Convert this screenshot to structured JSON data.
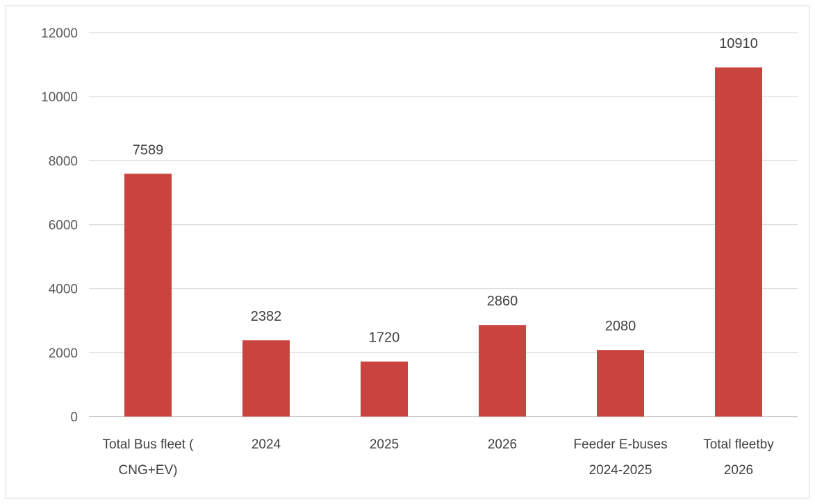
{
  "chart_data": {
    "type": "bar",
    "title": "",
    "xlabel": "",
    "ylabel": "",
    "categories": [
      [
        "Total Bus fleet (",
        "CNG+EV)"
      ],
      [
        "2024"
      ],
      [
        "2025"
      ],
      [
        "2026"
      ],
      [
        "Feeder E-buses",
        "2024-2025"
      ],
      [
        "Total fleetby",
        "2026"
      ]
    ],
    "values": [
      7589,
      2382,
      1720,
      2860,
      2080,
      10910
    ],
    "data_labels": [
      "7589",
      "2382",
      "1720",
      "2860",
      "2080",
      "10910"
    ],
    "ylim": [
      0,
      12000
    ],
    "yticks": [
      0,
      2000,
      4000,
      6000,
      8000,
      10000,
      12000
    ],
    "ytick_labels": [
      "0",
      "2000",
      "4000",
      "6000",
      "8000",
      "10000",
      "12000"
    ],
    "grid": true,
    "legend": "none",
    "colors": {
      "bar": "#c9433f",
      "grid": "#d9d9d9",
      "axis": "#bfbfbf"
    }
  }
}
